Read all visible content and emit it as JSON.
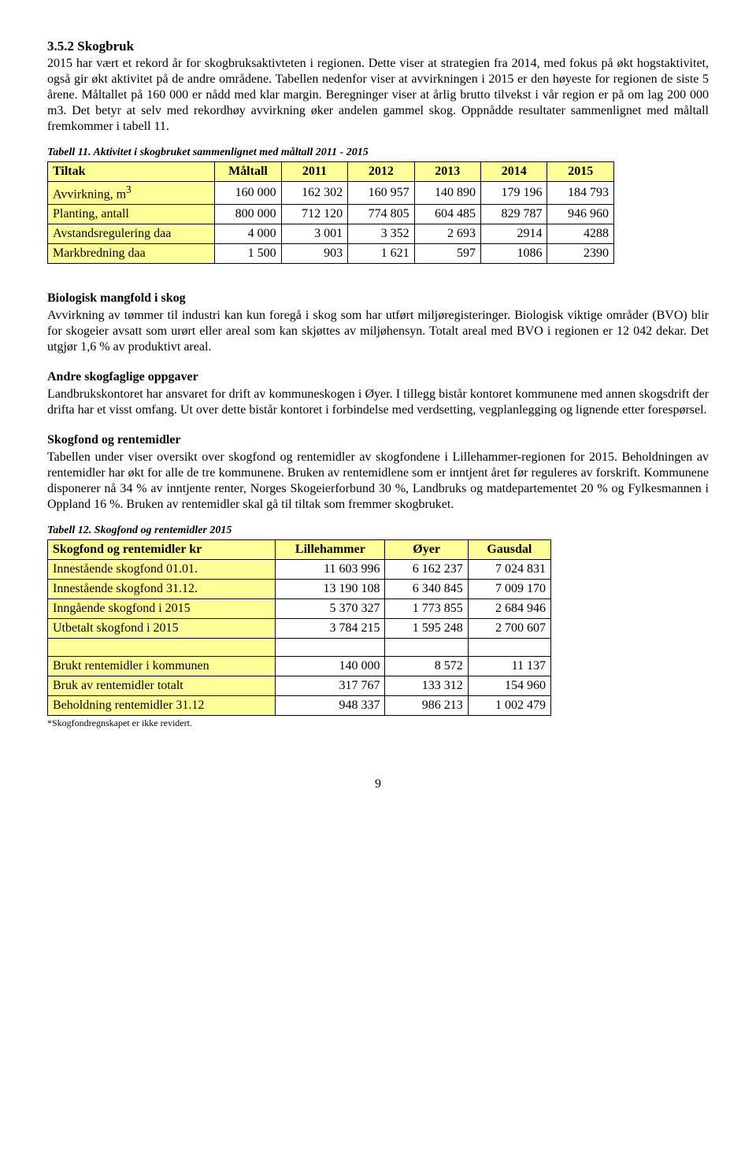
{
  "section": {
    "title": "3.5.2 Skogbruk",
    "paragraph": "2015 har vært et rekord år for skogbruksaktivteten i regionen. Dette viser at strategien fra 2014, med fokus på økt hogstaktivitet, også gir økt aktivitet på de andre områdene. Tabellen nedenfor viser at avvirkningen i 2015 er den høyeste for regionen de siste 5 årene. Måltallet på 160 000 er nådd med klar margin. Beregninger viser at årlig brutto tilvekst i vår region er på om lag 200 000 m3. Det betyr at selv med rekordhøy avvirkning øker andelen gammel skog. Oppnådde resultater sammenlignet med måltall fremkommer i tabell 11."
  },
  "table11": {
    "caption": "Tabell 11. Aktivitet i skogbruket sammenlignet med måltall 2011 - 2015",
    "headers": [
      "Tiltak",
      "Måltall",
      "2011",
      "2012",
      "2013",
      "2014",
      "2015"
    ],
    "rows": [
      {
        "label": "Avvirkning, m",
        "sup": "3",
        "values": [
          "160 000",
          "162 302",
          "160 957",
          "140 890",
          "179 196",
          "184 793"
        ]
      },
      {
        "label": "Planting, antall",
        "sup": "",
        "values": [
          "800 000",
          "712 120",
          "774 805",
          "604 485",
          "829 787",
          "946 960"
        ]
      },
      {
        "label": "Avstandsregulering daa",
        "sup": "",
        "values": [
          "4 000",
          "3 001",
          "3 352",
          "2 693",
          "2914",
          "4288"
        ]
      },
      {
        "label": "Markbredning daa",
        "sup": "",
        "values": [
          "1 500",
          "903",
          "1 621",
          "597",
          "1086",
          "2390"
        ]
      }
    ]
  },
  "bio": {
    "heading": "Biologisk mangfold i skog",
    "text": "Avvirkning av tømmer til industri kan kun foregå i skog som har utført miljøregisteringer. Biologisk viktige områder (BVO) blir for skogeier avsatt som urørt eller areal som kan skjøttes av miljøhensyn. Totalt areal med BVO i regionen er 12 042 dekar. Det utgjør 1,6 % av produktivt areal."
  },
  "andre": {
    "heading": "Andre skogfaglige oppgaver",
    "text": "Landbrukskontoret har ansvaret for drift av kommuneskogen i Øyer. I tillegg bistår kontoret kommunene med annen skogsdrift der drifta har et visst omfang. Ut over dette bistår kontoret i forbindelse med verdsetting, vegplanlegging og lignende etter forespørsel."
  },
  "skogfond": {
    "heading": "Skogfond og rentemidler",
    "text": "Tabellen under viser oversikt over skogfond og rentemidler av skogfondene i Lillehammer-regionen for 2015. Beholdningen av rentemidler har økt for alle de tre kommunene. Bruken av rentemidlene som er inntjent året før reguleres av forskrift. Kommunene disponerer nå 34 % av inntjente renter, Norges Skogeierforbund 30 %, Landbruks og matdepartementet 20 % og Fylkesmannen i Oppland 16 %. Bruken av rentemidler skal gå til tiltak som fremmer skogbruket."
  },
  "table12": {
    "caption": "Tabell 12. Skogfond og rentemidler 2015",
    "headers": [
      "Skogfond og rentemidler kr",
      "Lillehammer",
      "Øyer",
      "Gausdal"
    ],
    "rows_a": [
      {
        "label": "Innestående skogfond 01.01.",
        "values": [
          "11 603 996",
          "6 162 237",
          "7 024 831"
        ]
      },
      {
        "label": "Innestående skogfond 31.12.",
        "values": [
          "13 190 108",
          "6 340 845",
          "7 009 170"
        ]
      },
      {
        "label": "Inngående skogfond i 2015",
        "values": [
          "5 370 327",
          "1 773 855",
          "2 684 946"
        ]
      },
      {
        "label": "Utbetalt skogfond i 2015",
        "values": [
          "3 784 215",
          "1 595 248",
          "2 700 607"
        ]
      }
    ],
    "rows_b": [
      {
        "label": "Brukt rentemidler i kommunen",
        "values": [
          "140 000",
          "8 572",
          "11 137"
        ]
      },
      {
        "label": "Bruk av rentemidler totalt",
        "values": [
          "317 767",
          "133 312",
          "154 960"
        ]
      },
      {
        "label": "Beholdning rentemidler 31.12",
        "values": [
          "948 337",
          "986 213",
          "1 002 479"
        ]
      }
    ],
    "footnote": "*Skogfondregnskapet er ikke revidert."
  },
  "page_number": "9"
}
